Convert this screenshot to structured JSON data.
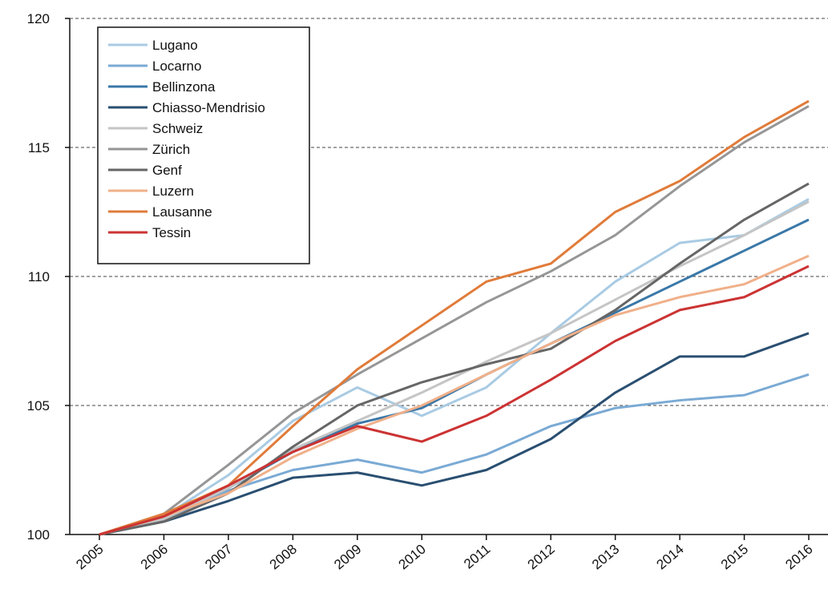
{
  "chart_data": {
    "type": "line",
    "categories": [
      "2005",
      "2006",
      "2007",
      "2008",
      "2009",
      "2010",
      "2011",
      "2012",
      "2013",
      "2014",
      "2015",
      "2016"
    ],
    "ylim": [
      100,
      120
    ],
    "yticks": [
      100,
      105,
      110,
      115,
      120
    ],
    "grid": true,
    "legend": "upper left",
    "series": [
      {
        "name": "Lugano",
        "color": "#a9cbe3",
        "values": [
          100,
          100.7,
          102.3,
          104.4,
          105.7,
          104.6,
          105.7,
          107.8,
          109.8,
          111.3,
          111.6,
          113.0
        ]
      },
      {
        "name": "Locarno",
        "color": "#7aaad4",
        "values": [
          100,
          100.6,
          101.7,
          102.5,
          102.9,
          102.4,
          103.1,
          104.2,
          104.9,
          105.2,
          105.4,
          106.2
        ]
      },
      {
        "name": "Bellinzona",
        "color": "#3a78a8",
        "values": [
          100,
          100.6,
          101.8,
          103.2,
          104.3,
          104.9,
          106.2,
          107.4,
          108.6,
          109.8,
          111.0,
          112.2
        ]
      },
      {
        "name": "Chiasso-Mendrisio",
        "color": "#2a4f71",
        "values": [
          100,
          100.5,
          101.3,
          102.2,
          102.4,
          101.9,
          102.5,
          103.7,
          105.5,
          106.9,
          106.9,
          107.8
        ]
      },
      {
        "name": "Schweiz",
        "color": "#c5c5c5",
        "values": [
          100,
          100.6,
          101.8,
          103.3,
          104.4,
          105.5,
          106.7,
          107.8,
          109.1,
          110.4,
          111.6,
          112.9
        ]
      },
      {
        "name": "Zürich",
        "color": "#969696",
        "values": [
          100,
          100.8,
          102.7,
          104.7,
          106.2,
          107.6,
          109.0,
          110.2,
          111.6,
          113.5,
          115.2,
          116.6
        ]
      },
      {
        "name": "Genf",
        "color": "#666666",
        "values": [
          100,
          100.5,
          101.6,
          103.4,
          105.0,
          105.9,
          106.6,
          107.2,
          108.7,
          110.5,
          112.2,
          113.6
        ]
      },
      {
        "name": "Luzern",
        "color": "#f0b08a",
        "values": [
          100,
          100.7,
          101.6,
          103.0,
          104.1,
          105.0,
          106.2,
          107.4,
          108.5,
          109.2,
          109.7,
          110.8
        ]
      },
      {
        "name": "Lausanne",
        "color": "#e07b39",
        "values": [
          100,
          100.8,
          101.9,
          104.2,
          106.4,
          108.1,
          109.8,
          110.5,
          112.5,
          113.7,
          115.4,
          116.8
        ]
      },
      {
        "name": "Tessin",
        "color": "#cc3333",
        "values": [
          100,
          100.7,
          101.9,
          103.2,
          104.2,
          103.6,
          104.6,
          106.0,
          107.5,
          108.7,
          109.2,
          110.4
        ]
      }
    ]
  }
}
